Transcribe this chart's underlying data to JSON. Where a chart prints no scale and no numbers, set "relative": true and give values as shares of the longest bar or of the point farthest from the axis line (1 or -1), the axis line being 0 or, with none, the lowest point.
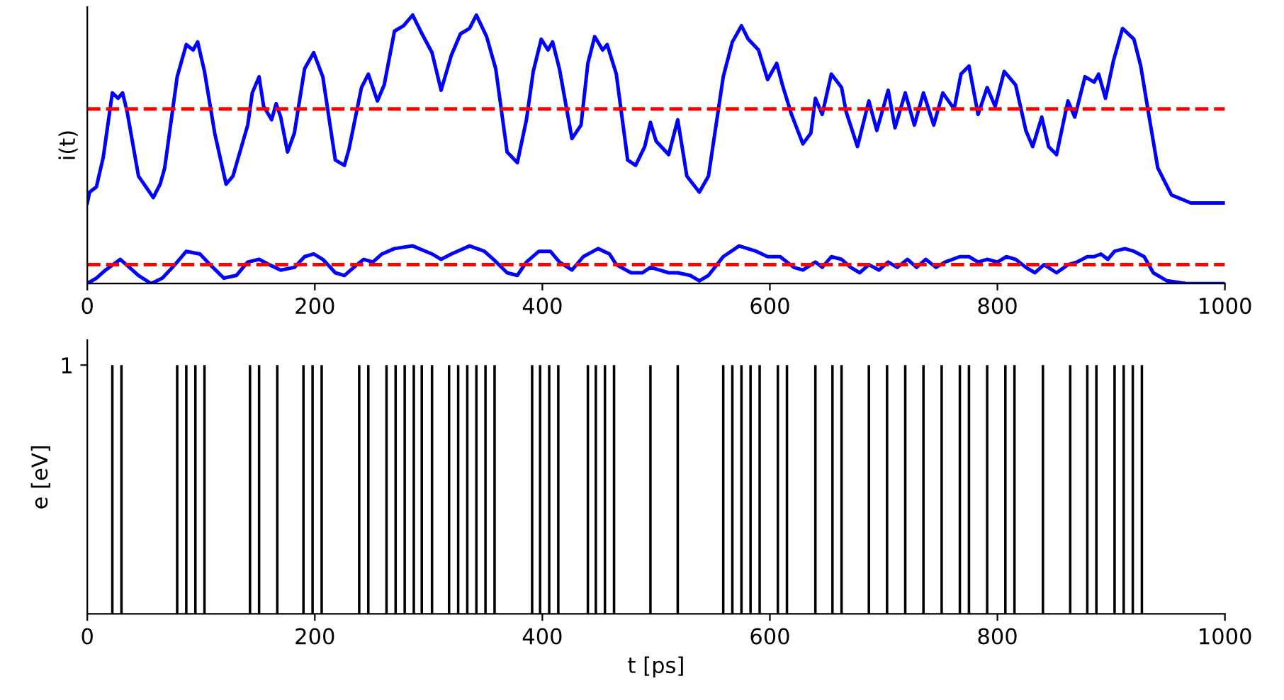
{
  "chart_data": [
    {
      "type": "line",
      "relative": true,
      "ylabel": "i(t)",
      "xlim": [
        0,
        1000
      ],
      "xticks": [
        0,
        200,
        400,
        600,
        800,
        1000
      ],
      "tick_labels": "x",
      "grid": false,
      "legend": false,
      "line_style": "solid",
      "marker": "none",
      "series": [
        {
          "color": "#0000ff",
          "x": [
            0,
            2,
            8,
            14,
            22,
            27,
            31,
            35,
            45,
            58,
            64,
            68,
            79,
            87,
            93,
            97,
            103,
            112,
            122,
            128,
            141,
            145,
            151,
            155,
            162,
            166,
            170,
            176,
            182,
            191,
            199,
            207,
            218,
            226,
            230,
            241,
            247,
            255,
            261,
            270,
            278,
            286,
            293,
            303,
            311,
            320,
            328,
            336,
            342,
            351,
            359,
            369,
            378,
            386,
            392,
            399,
            405,
            409,
            415,
            426,
            434,
            440,
            446,
            453,
            457,
            465,
            475,
            482,
            490,
            495,
            500,
            511,
            519,
            527,
            538,
            546,
            559,
            567,
            575,
            581,
            590,
            598,
            606,
            611,
            619,
            629,
            636,
            640,
            646,
            654,
            663,
            667,
            677,
            687,
            694,
            704,
            710,
            719,
            727,
            735,
            744,
            752,
            762,
            768,
            775,
            783,
            791,
            798,
            806,
            816,
            825,
            831,
            839,
            845,
            852,
            862,
            868,
            877,
            885,
            889,
            895,
            902,
            910,
            920,
            926,
            933,
            941,
            953,
            970,
            999
          ],
          "values": [
            0.3,
            0.34,
            0.36,
            0.47,
            0.71,
            0.69,
            0.71,
            0.64,
            0.4,
            0.32,
            0.37,
            0.43,
            0.77,
            0.89,
            0.87,
            0.9,
            0.79,
            0.56,
            0.37,
            0.4,
            0.59,
            0.71,
            0.77,
            0.66,
            0.61,
            0.67,
            0.62,
            0.49,
            0.56,
            0.8,
            0.86,
            0.77,
            0.46,
            0.44,
            0.5,
            0.73,
            0.78,
            0.68,
            0.74,
            0.94,
            0.96,
            1.0,
            0.94,
            0.86,
            0.72,
            0.85,
            0.93,
            0.95,
            1.0,
            0.92,
            0.8,
            0.49,
            0.45,
            0.61,
            0.79,
            0.91,
            0.87,
            0.9,
            0.8,
            0.54,
            0.59,
            0.82,
            0.92,
            0.87,
            0.89,
            0.78,
            0.46,
            0.44,
            0.51,
            0.6,
            0.53,
            0.48,
            0.61,
            0.4,
            0.34,
            0.4,
            0.77,
            0.9,
            0.96,
            0.91,
            0.87,
            0.76,
            0.82,
            0.74,
            0.63,
            0.52,
            0.56,
            0.69,
            0.63,
            0.78,
            0.73,
            0.64,
            0.51,
            0.68,
            0.57,
            0.72,
            0.58,
            0.71,
            0.59,
            0.71,
            0.59,
            0.71,
            0.65,
            0.78,
            0.81,
            0.63,
            0.73,
            0.66,
            0.79,
            0.74,
            0.57,
            0.51,
            0.62,
            0.51,
            0.48,
            0.68,
            0.62,
            0.77,
            0.75,
            0.78,
            0.69,
            0.83,
            0.95,
            0.91,
            0.81,
            0.63,
            0.43,
            0.33,
            0.3,
            0.3
          ]
        },
        {
          "color": "#0000ff",
          "x": [
            0,
            8,
            16,
            29,
            37,
            45,
            56,
            66,
            77,
            87,
            99,
            108,
            120,
            131,
            141,
            151,
            160,
            170,
            182,
            191,
            199,
            207,
            218,
            226,
            237,
            243,
            251,
            259,
            270,
            286,
            303,
            311,
            320,
            336,
            349,
            357,
            369,
            378,
            386,
            397,
            407,
            415,
            426,
            436,
            449,
            459,
            465,
            478,
            488,
            495,
            503,
            511,
            519,
            530,
            538,
            546,
            559,
            573,
            588,
            598,
            609,
            621,
            629,
            640,
            646,
            654,
            663,
            671,
            679,
            687,
            696,
            704,
            712,
            721,
            729,
            737,
            746,
            754,
            767,
            775,
            783,
            791,
            800,
            808,
            816,
            825,
            833,
            841,
            852,
            862,
            870,
            879,
            885,
            891,
            897,
            903,
            912,
            920,
            929,
            937,
            949,
            966,
            999
          ],
          "values": [
            0.0,
            0.02,
            0.05,
            0.09,
            0.06,
            0.03,
            0.0,
            0.02,
            0.07,
            0.12,
            0.11,
            0.07,
            0.02,
            0.03,
            0.08,
            0.09,
            0.07,
            0.05,
            0.06,
            0.1,
            0.11,
            0.09,
            0.04,
            0.03,
            0.07,
            0.09,
            0.08,
            0.11,
            0.13,
            0.14,
            0.11,
            0.09,
            0.11,
            0.14,
            0.12,
            0.09,
            0.04,
            0.03,
            0.08,
            0.12,
            0.12,
            0.08,
            0.05,
            0.1,
            0.13,
            0.11,
            0.07,
            0.04,
            0.04,
            0.06,
            0.05,
            0.04,
            0.04,
            0.03,
            0.01,
            0.03,
            0.1,
            0.14,
            0.12,
            0.1,
            0.1,
            0.06,
            0.05,
            0.08,
            0.06,
            0.1,
            0.09,
            0.06,
            0.04,
            0.07,
            0.05,
            0.08,
            0.06,
            0.09,
            0.06,
            0.09,
            0.06,
            0.08,
            0.1,
            0.1,
            0.08,
            0.09,
            0.08,
            0.1,
            0.09,
            0.06,
            0.04,
            0.07,
            0.04,
            0.07,
            0.08,
            0.1,
            0.1,
            0.11,
            0.09,
            0.12,
            0.13,
            0.12,
            0.1,
            0.04,
            0.01,
            0.0,
            0.0
          ]
        }
      ],
      "ref_lines": [
        {
          "axis": "y",
          "value": 0.65,
          "color": "#ff0000",
          "line_style": "dashed"
        },
        {
          "axis": "y",
          "value": 0.07,
          "color": "#ff0000",
          "line_style": "dashed"
        }
      ]
    },
    {
      "type": "bar",
      "xlabel": "t [ps]",
      "ylabel": "e [eV]",
      "xlim": [
        0,
        1000
      ],
      "xticks": [
        0,
        200,
        400,
        600,
        800,
        1000
      ],
      "ylim": [
        0,
        1.1
      ],
      "yticks": [
        1
      ],
      "grid": false,
      "legend": false,
      "x": [
        22,
        30,
        79,
        87,
        95,
        103,
        143,
        151,
        167,
        190,
        198,
        206,
        239,
        247,
        263,
        271,
        279,
        287,
        294,
        303,
        318,
        326,
        334,
        342,
        350,
        358,
        391,
        398,
        406,
        414,
        440,
        447,
        455,
        463,
        495,
        519,
        559,
        567,
        575,
        583,
        591,
        607,
        615,
        640,
        655,
        663,
        687,
        703,
        719,
        735,
        751,
        767,
        775,
        791,
        807,
        815,
        840,
        864,
        879,
        887,
        903,
        911,
        919,
        927
      ],
      "values": [
        1,
        1,
        1,
        1,
        1,
        1,
        1,
        1,
        1,
        1,
        1,
        1,
        1,
        1,
        1,
        1,
        1,
        1,
        1,
        1,
        1,
        1,
        1,
        1,
        1,
        1,
        1,
        1,
        1,
        1,
        1,
        1,
        1,
        1,
        1,
        1,
        1,
        1,
        1,
        1,
        1,
        1,
        1,
        1,
        1,
        1,
        1,
        1,
        1,
        1,
        1,
        1,
        1,
        1,
        1,
        1,
        1,
        1,
        1,
        1,
        1,
        1,
        1,
        1
      ],
      "color": "#000000"
    }
  ]
}
